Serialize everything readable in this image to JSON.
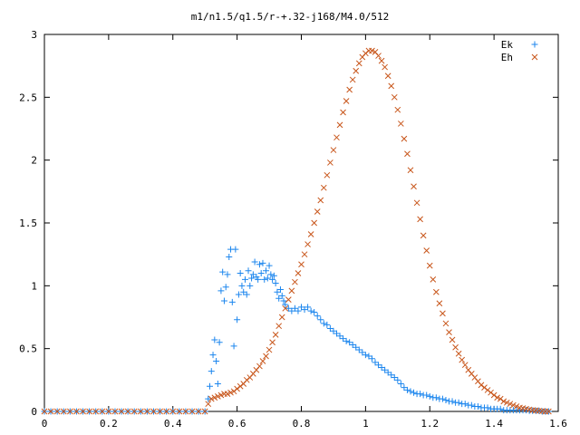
{
  "chart_data": {
    "type": "scatter",
    "title": "m1/n1.5/q1.5/r-+.32-j168/M4.0/512",
    "xlabel": "",
    "ylabel": "",
    "xlim": [
      0,
      1.6
    ],
    "ylim": [
      0,
      3
    ],
    "x_ticks": [
      "0",
      "0.2",
      "0.4",
      "0.6",
      "0.8",
      "1",
      "1.2",
      "1.4",
      "1.6"
    ],
    "y_ticks": [
      "0",
      "0.5",
      "1",
      "1.5",
      "2",
      "2.5",
      "3"
    ],
    "grid": false,
    "legend_position": "top-right",
    "series": [
      {
        "name": "Ek",
        "marker": "plus",
        "color": "#1c86ee",
        "points": [
          [
            0.0,
            0
          ],
          [
            0.02,
            0
          ],
          [
            0.04,
            0
          ],
          [
            0.06,
            0
          ],
          [
            0.08,
            0
          ],
          [
            0.1,
            0
          ],
          [
            0.12,
            0
          ],
          [
            0.14,
            0
          ],
          [
            0.16,
            0
          ],
          [
            0.18,
            0
          ],
          [
            0.2,
            0
          ],
          [
            0.22,
            0
          ],
          [
            0.24,
            0
          ],
          [
            0.26,
            0
          ],
          [
            0.28,
            0
          ],
          [
            0.3,
            0
          ],
          [
            0.32,
            0
          ],
          [
            0.34,
            0
          ],
          [
            0.36,
            0
          ],
          [
            0.38,
            0
          ],
          [
            0.4,
            0
          ],
          [
            0.42,
            0
          ],
          [
            0.44,
            0
          ],
          [
            0.46,
            0
          ],
          [
            0.48,
            0
          ],
          [
            0.5,
            0
          ],
          [
            0.51,
            0.1
          ],
          [
            0.515,
            0.2
          ],
          [
            0.52,
            0.32
          ],
          [
            0.525,
            0.45
          ],
          [
            0.53,
            0.57
          ],
          [
            0.535,
            0.4
          ],
          [
            0.54,
            0.22
          ],
          [
            0.545,
            0.55
          ],
          [
            0.55,
            0.96
          ],
          [
            0.555,
            1.11
          ],
          [
            0.56,
            0.88
          ],
          [
            0.565,
            0.99
          ],
          [
            0.57,
            1.09
          ],
          [
            0.575,
            1.23
          ],
          [
            0.58,
            1.29
          ],
          [
            0.585,
            0.87
          ],
          [
            0.59,
            0.52
          ],
          [
            0.595,
            1.29
          ],
          [
            0.6,
            0.73
          ],
          [
            0.605,
            0.93
          ],
          [
            0.61,
            1.1
          ],
          [
            0.615,
            1.0
          ],
          [
            0.62,
            0.95
          ],
          [
            0.625,
            1.05
          ],
          [
            0.63,
            0.93
          ],
          [
            0.635,
            1.12
          ],
          [
            0.64,
            1.0
          ],
          [
            0.645,
            1.06
          ],
          [
            0.65,
            1.09
          ],
          [
            0.655,
            1.19
          ],
          [
            0.66,
            1.07
          ],
          [
            0.665,
            1.05
          ],
          [
            0.67,
            1.17
          ],
          [
            0.675,
            1.1
          ],
          [
            0.68,
            1.18
          ],
          [
            0.685,
            1.05
          ],
          [
            0.69,
            1.12
          ],
          [
            0.695,
            1.06
          ],
          [
            0.7,
            1.16
          ],
          [
            0.705,
            1.09
          ],
          [
            0.71,
            1.05
          ],
          [
            0.715,
            1.08
          ],
          [
            0.72,
            1.02
          ],
          [
            0.725,
            0.95
          ],
          [
            0.73,
            0.9
          ],
          [
            0.735,
            0.97
          ],
          [
            0.74,
            0.92
          ],
          [
            0.745,
            0.88
          ],
          [
            0.75,
            0.85
          ],
          [
            0.76,
            0.82
          ],
          [
            0.77,
            0.8
          ],
          [
            0.78,
            0.82
          ],
          [
            0.79,
            0.8
          ],
          [
            0.8,
            0.83
          ],
          [
            0.81,
            0.81
          ],
          [
            0.82,
            0.83
          ],
          [
            0.83,
            0.8
          ],
          [
            0.84,
            0.79
          ],
          [
            0.85,
            0.76
          ],
          [
            0.86,
            0.73
          ],
          [
            0.87,
            0.7
          ],
          [
            0.88,
            0.69
          ],
          [
            0.89,
            0.66
          ],
          [
            0.9,
            0.64
          ],
          [
            0.91,
            0.62
          ],
          [
            0.92,
            0.6
          ],
          [
            0.93,
            0.58
          ],
          [
            0.94,
            0.56
          ],
          [
            0.95,
            0.55
          ],
          [
            0.96,
            0.53
          ],
          [
            0.97,
            0.51
          ],
          [
            0.98,
            0.49
          ],
          [
            0.99,
            0.47
          ],
          [
            1.0,
            0.45
          ],
          [
            1.01,
            0.44
          ],
          [
            1.02,
            0.42
          ],
          [
            1.03,
            0.39
          ],
          [
            1.04,
            0.37
          ],
          [
            1.05,
            0.35
          ],
          [
            1.06,
            0.33
          ],
          [
            1.07,
            0.31
          ],
          [
            1.08,
            0.29
          ],
          [
            1.09,
            0.27
          ],
          [
            1.1,
            0.25
          ],
          [
            1.11,
            0.22
          ],
          [
            1.12,
            0.19
          ],
          [
            1.13,
            0.17
          ],
          [
            1.14,
            0.16
          ],
          [
            1.15,
            0.15
          ],
          [
            1.16,
            0.14
          ],
          [
            1.17,
            0.14
          ],
          [
            1.18,
            0.13
          ],
          [
            1.19,
            0.13
          ],
          [
            1.2,
            0.12
          ],
          [
            1.21,
            0.11
          ],
          [
            1.22,
            0.11
          ],
          [
            1.23,
            0.1
          ],
          [
            1.24,
            0.1
          ],
          [
            1.25,
            0.09
          ],
          [
            1.26,
            0.08
          ],
          [
            1.27,
            0.08
          ],
          [
            1.28,
            0.07
          ],
          [
            1.29,
            0.07
          ],
          [
            1.3,
            0.06
          ],
          [
            1.31,
            0.06
          ],
          [
            1.32,
            0.05
          ],
          [
            1.33,
            0.05
          ],
          [
            1.34,
            0.04
          ],
          [
            1.35,
            0.04
          ],
          [
            1.36,
            0.03
          ],
          [
            1.37,
            0.03
          ],
          [
            1.38,
            0.03
          ],
          [
            1.39,
            0.02
          ],
          [
            1.4,
            0.02
          ],
          [
            1.41,
            0.02
          ],
          [
            1.42,
            0.02
          ],
          [
            1.43,
            0.01
          ],
          [
            1.44,
            0.01
          ],
          [
            1.45,
            0.01
          ],
          [
            1.46,
            0.01
          ],
          [
            1.47,
            0.01
          ],
          [
            1.48,
            0.01
          ],
          [
            1.49,
            0.01
          ],
          [
            1.5,
            0.01
          ],
          [
            1.51,
            0.005
          ],
          [
            1.52,
            0.005
          ],
          [
            1.53,
            0.005
          ],
          [
            1.54,
            0.005
          ],
          [
            1.55,
            0.0
          ],
          [
            1.56,
            0.0
          ],
          [
            1.57,
            0.0
          ]
        ]
      },
      {
        "name": "Eh",
        "marker": "cross",
        "color": "#c8561b",
        "points": [
          [
            0.0,
            0
          ],
          [
            0.02,
            0
          ],
          [
            0.04,
            0
          ],
          [
            0.06,
            0
          ],
          [
            0.08,
            0
          ],
          [
            0.1,
            0
          ],
          [
            0.12,
            0
          ],
          [
            0.14,
            0
          ],
          [
            0.16,
            0
          ],
          [
            0.18,
            0
          ],
          [
            0.2,
            0
          ],
          [
            0.22,
            0
          ],
          [
            0.24,
            0
          ],
          [
            0.26,
            0
          ],
          [
            0.28,
            0
          ],
          [
            0.3,
            0
          ],
          [
            0.32,
            0
          ],
          [
            0.34,
            0
          ],
          [
            0.36,
            0
          ],
          [
            0.38,
            0
          ],
          [
            0.4,
            0
          ],
          [
            0.42,
            0
          ],
          [
            0.44,
            0
          ],
          [
            0.46,
            0
          ],
          [
            0.48,
            0
          ],
          [
            0.5,
            0
          ],
          [
            0.51,
            0.06
          ],
          [
            0.52,
            0.1
          ],
          [
            0.53,
            0.11
          ],
          [
            0.54,
            0.12
          ],
          [
            0.55,
            0.13
          ],
          [
            0.56,
            0.14
          ],
          [
            0.57,
            0.14
          ],
          [
            0.58,
            0.15
          ],
          [
            0.59,
            0.16
          ],
          [
            0.6,
            0.18
          ],
          [
            0.61,
            0.2
          ],
          [
            0.62,
            0.22
          ],
          [
            0.63,
            0.25
          ],
          [
            0.64,
            0.27
          ],
          [
            0.65,
            0.3
          ],
          [
            0.66,
            0.33
          ],
          [
            0.67,
            0.36
          ],
          [
            0.68,
            0.4
          ],
          [
            0.69,
            0.44
          ],
          [
            0.7,
            0.49
          ],
          [
            0.71,
            0.55
          ],
          [
            0.72,
            0.61
          ],
          [
            0.73,
            0.68
          ],
          [
            0.74,
            0.75
          ],
          [
            0.75,
            0.82
          ],
          [
            0.76,
            0.89
          ],
          [
            0.77,
            0.96
          ],
          [
            0.78,
            1.03
          ],
          [
            0.79,
            1.1
          ],
          [
            0.8,
            1.17
          ],
          [
            0.81,
            1.25
          ],
          [
            0.82,
            1.33
          ],
          [
            0.83,
            1.41
          ],
          [
            0.84,
            1.5
          ],
          [
            0.85,
            1.59
          ],
          [
            0.86,
            1.68
          ],
          [
            0.87,
            1.78
          ],
          [
            0.88,
            1.88
          ],
          [
            0.89,
            1.98
          ],
          [
            0.9,
            2.08
          ],
          [
            0.91,
            2.18
          ],
          [
            0.92,
            2.28
          ],
          [
            0.93,
            2.38
          ],
          [
            0.94,
            2.47
          ],
          [
            0.95,
            2.56
          ],
          [
            0.96,
            2.64
          ],
          [
            0.97,
            2.71
          ],
          [
            0.98,
            2.77
          ],
          [
            0.99,
            2.82
          ],
          [
            1.0,
            2.85
          ],
          [
            1.01,
            2.87
          ],
          [
            1.02,
            2.87
          ],
          [
            1.03,
            2.86
          ],
          [
            1.04,
            2.83
          ],
          [
            1.05,
            2.79
          ],
          [
            1.06,
            2.74
          ],
          [
            1.07,
            2.67
          ],
          [
            1.08,
            2.59
          ],
          [
            1.09,
            2.5
          ],
          [
            1.1,
            2.4
          ],
          [
            1.11,
            2.29
          ],
          [
            1.12,
            2.17
          ],
          [
            1.13,
            2.05
          ],
          [
            1.14,
            1.92
          ],
          [
            1.15,
            1.79
          ],
          [
            1.16,
            1.66
          ],
          [
            1.17,
            1.53
          ],
          [
            1.18,
            1.4
          ],
          [
            1.19,
            1.28
          ],
          [
            1.2,
            1.16
          ],
          [
            1.21,
            1.05
          ],
          [
            1.22,
            0.95
          ],
          [
            1.23,
            0.86
          ],
          [
            1.24,
            0.78
          ],
          [
            1.25,
            0.7
          ],
          [
            1.26,
            0.63
          ],
          [
            1.27,
            0.57
          ],
          [
            1.28,
            0.51
          ],
          [
            1.29,
            0.46
          ],
          [
            1.3,
            0.41
          ],
          [
            1.31,
            0.37
          ],
          [
            1.32,
            0.33
          ],
          [
            1.33,
            0.3
          ],
          [
            1.34,
            0.27
          ],
          [
            1.35,
            0.24
          ],
          [
            1.36,
            0.21
          ],
          [
            1.37,
            0.19
          ],
          [
            1.38,
            0.17
          ],
          [
            1.39,
            0.15
          ],
          [
            1.4,
            0.13
          ],
          [
            1.41,
            0.11
          ],
          [
            1.42,
            0.1
          ],
          [
            1.43,
            0.08
          ],
          [
            1.44,
            0.07
          ],
          [
            1.45,
            0.06
          ],
          [
            1.46,
            0.05
          ],
          [
            1.47,
            0.04
          ],
          [
            1.48,
            0.03
          ],
          [
            1.49,
            0.025
          ],
          [
            1.5,
            0.02
          ],
          [
            1.51,
            0.015
          ],
          [
            1.52,
            0.01
          ],
          [
            1.53,
            0.008
          ],
          [
            1.54,
            0.005
          ],
          [
            1.55,
            0.003
          ],
          [
            1.56,
            0.0
          ],
          [
            1.57,
            0.0
          ]
        ]
      }
    ]
  }
}
